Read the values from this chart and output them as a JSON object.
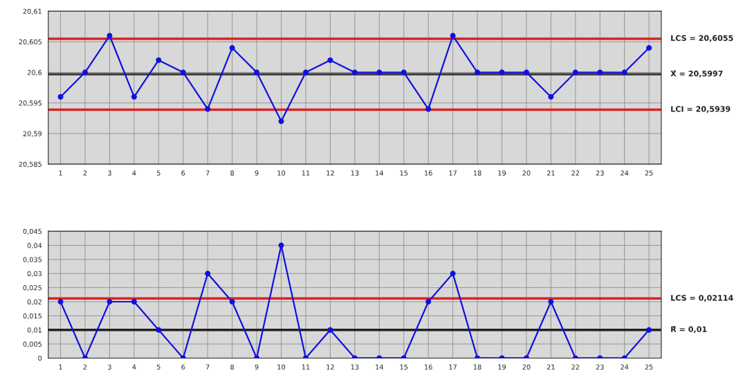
{
  "chart_data": [
    {
      "type": "line",
      "categories": [
        "1",
        "2",
        "3",
        "4",
        "5",
        "6",
        "7",
        "8",
        "9",
        "10",
        "11",
        "12",
        "13",
        "14",
        "15",
        "16",
        "17",
        "18",
        "19",
        "20",
        "21",
        "22",
        "23",
        "24",
        "25"
      ],
      "series": [
        {
          "color": "#1010e0",
          "values": [
            20.596,
            20.6,
            20.606,
            20.596,
            20.602,
            20.6,
            20.594,
            20.604,
            20.6,
            20.592,
            20.6,
            20.602,
            20.6,
            20.6,
            20.6,
            20.594,
            20.606,
            20.6,
            20.6,
            20.6,
            20.596,
            20.6,
            20.6,
            20.6,
            20.604
          ]
        }
      ],
      "ylim": [
        20.585,
        20.61
      ],
      "yticks": [
        {
          "value": 20.585,
          "label": "20,585"
        },
        {
          "value": 20.59,
          "label": "20,59"
        },
        {
          "value": 20.595,
          "label": "20,595"
        },
        {
          "value": 20.6,
          "label": "20,6"
        },
        {
          "value": 20.605,
          "label": "20,605"
        },
        {
          "value": 20.61,
          "label": "20,61"
        }
      ],
      "ref_lines": [
        {
          "axis": "y",
          "value": 20.6055,
          "label": "LCS = 20,6055",
          "color": "#e02020"
        },
        {
          "axis": "y",
          "value": 20.5997,
          "label": "X̄ = 20,5997",
          "color": "#404040"
        },
        {
          "axis": "y",
          "value": 20.5939,
          "label": "LCI = 20,5939",
          "color": "#e02020"
        }
      ],
      "grid": true,
      "marker": "circle",
      "line_style": "solid"
    },
    {
      "type": "line",
      "categories": [
        "1",
        "2",
        "3",
        "4",
        "5",
        "6",
        "7",
        "8",
        "9",
        "10",
        "11",
        "12",
        "13",
        "14",
        "15",
        "16",
        "17",
        "18",
        "19",
        "20",
        "21",
        "22",
        "23",
        "24",
        "25"
      ],
      "series": [
        {
          "color": "#1010e0",
          "values": [
            0.02,
            0,
            0.02,
            0.02,
            0.01,
            0,
            0.03,
            0.02,
            0,
            0.04,
            0,
            0.01,
            0,
            0,
            0,
            0.02,
            0.03,
            0,
            0,
            0,
            0.02,
            0,
            0,
            0,
            0.01
          ]
        }
      ],
      "ylim": [
        0,
        0.045
      ],
      "yticks": [
        {
          "value": 0,
          "label": "0"
        },
        {
          "value": 0.005,
          "label": "0,005"
        },
        {
          "value": 0.01,
          "label": "0,01"
        },
        {
          "value": 0.015,
          "label": "0,015"
        },
        {
          "value": 0.02,
          "label": "0,02"
        },
        {
          "value": 0.025,
          "label": "0,025"
        },
        {
          "value": 0.03,
          "label": "0,03"
        },
        {
          "value": 0.035,
          "label": "0,035"
        },
        {
          "value": 0.04,
          "label": "0,04"
        },
        {
          "value": 0.045,
          "label": "0,045"
        }
      ],
      "ref_lines": [
        {
          "axis": "y",
          "value": 0.02114,
          "label": "LCS = 0,02114",
          "color": "#e02020"
        },
        {
          "axis": "y",
          "value": 0.01,
          "label": "R̄ = 0,01",
          "color": "#202020"
        }
      ],
      "grid": true,
      "marker": "circle",
      "line_style": "solid"
    }
  ]
}
